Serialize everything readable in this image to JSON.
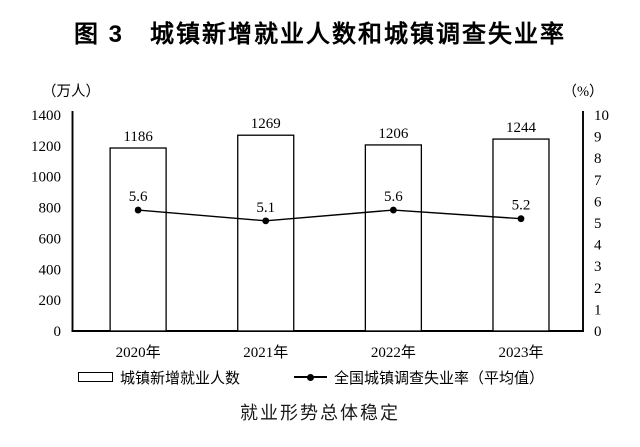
{
  "title": "图 3　城镇新增就业人数和城镇调查失业率",
  "caption": "就业形势总体稳定",
  "chart_data": {
    "type": "bar+line",
    "categories": [
      "2020年",
      "2021年",
      "2022年",
      "2023年"
    ],
    "series": [
      {
        "name": "城镇新增就业人数",
        "type": "bar",
        "axis": "left",
        "values": [
          1186,
          1269,
          1206,
          1244
        ],
        "labels": [
          "1186",
          "1269",
          "1206",
          "1244"
        ]
      },
      {
        "name": "全国城镇调查失业率（平均值）",
        "type": "line",
        "axis": "right",
        "values": [
          5.6,
          5.1,
          5.6,
          5.2
        ],
        "labels": [
          "5.6",
          "5.1",
          "5.6",
          "5.2"
        ]
      }
    ],
    "left_axis": {
      "label": "（万人）",
      "min": 0,
      "max": 1400,
      "ticks": [
        0,
        200,
        400,
        600,
        800,
        1000,
        1200,
        1400
      ]
    },
    "right_axis": {
      "label": "（%）",
      "min": 0,
      "max": 10,
      "ticks": [
        0,
        1,
        2,
        3,
        4,
        5,
        6,
        7,
        8,
        9,
        10
      ]
    },
    "legend_position": "bottom",
    "grid": false,
    "colors": {
      "bar_fill": "#ffffff",
      "stroke": "#000000",
      "text": "#000000",
      "background": "#ffffff"
    }
  }
}
